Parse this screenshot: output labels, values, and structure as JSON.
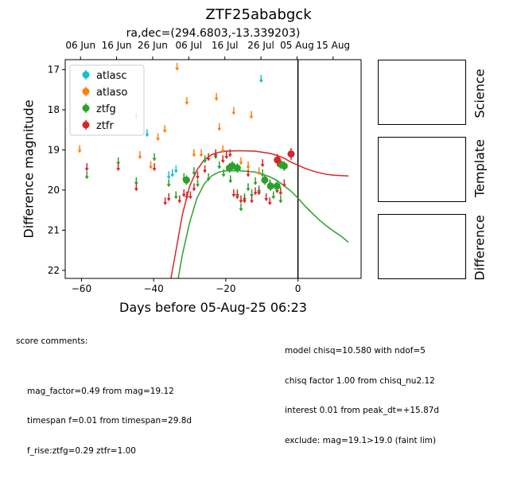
{
  "title": "ZTF25ababgck",
  "subtitle": "ra,dec=(294.6803,-13.339203)",
  "xlabel": "Days before 05-Aug-25 06:23",
  "ylabel": "Difference magnitude",
  "side_panels": [
    "Science",
    "Template",
    "Difference"
  ],
  "comments_left": {
    "header": "score comments:",
    "lines": [
      "mag_factor=0.49 from mag=19.12",
      "timespan f=0.01 from timespan=29.8d",
      "f_rise:ztfg=0.29 ztfr=1.00"
    ]
  },
  "comments_right": {
    "lines": [
      "model chisq=10.580 with ndof=5",
      "chisq factor 1.00 from chisq_nu2.12",
      "interest 0.01 from peak_dt=+15.87d",
      "exclude: mag=19.1>19.0 (faint lim)"
    ]
  },
  "chart_data": {
    "type": "scatter",
    "xlim": [
      -64.5,
      17.5
    ],
    "ylim": [
      22.2,
      16.75
    ],
    "y_inverted": true,
    "x_ticks": [
      -60,
      -40,
      -20,
      0
    ],
    "y_ticks": [
      17,
      18,
      19,
      20,
      21,
      22
    ],
    "top_axis_ticks": [
      {
        "x": -60.26,
        "label": "06 Jun"
      },
      {
        "x": -50.26,
        "label": "16 Jun"
      },
      {
        "x": -40.26,
        "label": "26 Jun"
      },
      {
        "x": -30.26,
        "label": "06 Jul"
      },
      {
        "x": -20.26,
        "label": "16 Jul"
      },
      {
        "x": -10.26,
        "label": "26 Jul"
      },
      {
        "x": -0.26,
        "label": "05 Aug"
      },
      {
        "x": 9.74,
        "label": "15 Aug"
      }
    ],
    "vline_x": 0,
    "legend": {
      "position": "top-left",
      "entries": [
        "atlasc",
        "atlaso",
        "ztfg",
        "ztfr"
      ]
    },
    "colors": {
      "atlasc": "#17becf",
      "atlaso": "#ff7f0e",
      "ztfg": "#2ca02c",
      "ztfr": "#d62728"
    },
    "series": [
      {
        "name": "atlasc",
        "kind": "upper_limit",
        "points": [
          [
            -35.8,
            19.65
          ],
          [
            -34.8,
            19.6
          ],
          [
            -33.8,
            19.5
          ],
          [
            -41.8,
            18.6
          ],
          [
            -10.2,
            17.25
          ]
        ]
      },
      {
        "name": "atlaso",
        "kind": "upper_limit",
        "points": [
          [
            -60.5,
            19.0
          ],
          [
            -44.8,
            18.15
          ],
          [
            -43.8,
            19.15
          ],
          [
            -40.8,
            19.4
          ],
          [
            -38.8,
            18.7
          ],
          [
            -36.9,
            18.5
          ],
          [
            -33.5,
            16.95
          ],
          [
            -30.8,
            17.8
          ],
          [
            -28.8,
            19.1
          ],
          [
            -26.8,
            19.1
          ],
          [
            -22.6,
            17.7
          ],
          [
            -21.8,
            18.45
          ],
          [
            -20.8,
            19.0
          ],
          [
            -17.8,
            18.05
          ],
          [
            -15.8,
            19.3
          ],
          [
            -13.8,
            19.4
          ],
          [
            -12.9,
            18.15
          ],
          [
            -10.8,
            19.55
          ],
          [
            -8.8,
            19.75
          ]
        ]
      },
      {
        "name": "ztfg",
        "kind": "upper_limit",
        "points": [
          [
            -58.5,
            19.65
          ],
          [
            -49.8,
            19.3
          ],
          [
            -44.8,
            19.8
          ],
          [
            -39.8,
            19.2
          ],
          [
            -35.8,
            19.85
          ],
          [
            -33.8,
            20.15
          ],
          [
            -31.6,
            19.7
          ],
          [
            -28.8,
            19.55
          ],
          [
            -27.8,
            19.85
          ],
          [
            -25.8,
            19.25
          ],
          [
            -24.8,
            19.7
          ],
          [
            -22.8,
            19.15
          ],
          [
            -21.8,
            19.4
          ],
          [
            -20.6,
            19.6
          ],
          [
            -18.7,
            19.75
          ],
          [
            -16.8,
            20.1
          ],
          [
            -15.8,
            20.45
          ],
          [
            -14.8,
            20.2
          ],
          [
            -13.8,
            19.95
          ],
          [
            -12.8,
            20.1
          ],
          [
            -11.8,
            19.8
          ],
          [
            -10.8,
            20.0
          ],
          [
            -9.8,
            19.6
          ],
          [
            -7.8,
            19.85
          ],
          [
            -6.8,
            20.15
          ],
          [
            -4.8,
            20.25
          ]
        ]
      },
      {
        "name": "ztfr",
        "kind": "upper_limit",
        "points": [
          [
            -58.5,
            19.45
          ],
          [
            -49.8,
            19.45
          ],
          [
            -44.8,
            19.95
          ],
          [
            -39.8,
            19.45
          ],
          [
            -36.8,
            20.3
          ],
          [
            -35.8,
            20.2
          ],
          [
            -32.8,
            20.25
          ],
          [
            -31.6,
            20.1
          ],
          [
            -30.8,
            20.15
          ],
          [
            -29.8,
            20.15
          ],
          [
            -28.8,
            19.95
          ],
          [
            -27.8,
            19.65
          ],
          [
            -25.8,
            19.5
          ],
          [
            -24.8,
            19.2
          ],
          [
            -22.8,
            19.1
          ],
          [
            -20.8,
            19.25
          ],
          [
            -19.8,
            19.15
          ],
          [
            -18.8,
            19.1
          ],
          [
            -17.8,
            20.1
          ],
          [
            -16.8,
            20.15
          ],
          [
            -15.8,
            20.25
          ],
          [
            -14.8,
            20.25
          ],
          [
            -13.8,
            19.6
          ],
          [
            -12.8,
            20.25
          ],
          [
            -11.8,
            20.05
          ],
          [
            -10.8,
            20.05
          ],
          [
            -9.8,
            19.35
          ],
          [
            -8.8,
            20.2
          ],
          [
            -7.8,
            20.3
          ],
          [
            -5.8,
            20.0
          ],
          [
            -4.8,
            20.05
          ],
          [
            -3.8,
            19.85
          ]
        ]
      },
      {
        "name": "ztfg",
        "kind": "detection",
        "points": [
          [
            -30.9,
            19.75,
            0.12
          ],
          [
            -19.0,
            19.45,
            0.12
          ],
          [
            -18.2,
            19.4,
            0.12
          ],
          [
            -16.8,
            19.45,
            0.12
          ],
          [
            -9.2,
            19.75,
            0.12
          ],
          [
            -7.6,
            19.9,
            0.12
          ],
          [
            -5.8,
            19.9,
            0.12
          ],
          [
            -4.9,
            19.35,
            0.12
          ],
          [
            -3.8,
            19.4,
            0.12
          ]
        ]
      },
      {
        "name": "ztfr",
        "kind": "detection",
        "points": [
          [
            -5.7,
            19.25,
            0.15
          ],
          [
            -1.9,
            19.1,
            0.15
          ]
        ]
      }
    ],
    "model_curves": [
      {
        "name": "ztfr",
        "points": [
          [
            -35.2,
            22.2
          ],
          [
            -34,
            21.6
          ],
          [
            -32,
            20.6
          ],
          [
            -30,
            19.9
          ],
          [
            -28,
            19.5
          ],
          [
            -26,
            19.25
          ],
          [
            -24,
            19.12
          ],
          [
            -22,
            19.06
          ],
          [
            -20,
            19.03
          ],
          [
            -16,
            19.02
          ],
          [
            -12,
            19.03
          ],
          [
            -8,
            19.08
          ],
          [
            -6,
            19.13
          ],
          [
            -4,
            19.2
          ],
          [
            -2,
            19.3
          ],
          [
            0,
            19.38
          ],
          [
            2,
            19.46
          ],
          [
            4,
            19.52
          ],
          [
            6,
            19.57
          ],
          [
            8,
            19.61
          ],
          [
            10,
            19.63
          ],
          [
            12,
            19.64
          ],
          [
            14,
            19.65
          ]
        ]
      },
      {
        "name": "ztfg",
        "points": [
          [
            -33.2,
            22.2
          ],
          [
            -32,
            21.6
          ],
          [
            -30,
            20.8
          ],
          [
            -28,
            20.2
          ],
          [
            -26,
            19.85
          ],
          [
            -24,
            19.65
          ],
          [
            -22,
            19.55
          ],
          [
            -20,
            19.52
          ],
          [
            -16,
            19.52
          ],
          [
            -12,
            19.55
          ],
          [
            -10,
            19.6
          ],
          [
            -8,
            19.66
          ],
          [
            -6,
            19.75
          ],
          [
            -4,
            19.88
          ],
          [
            -2,
            20.02
          ],
          [
            0,
            20.2
          ],
          [
            2,
            20.4
          ],
          [
            4,
            20.58
          ],
          [
            6,
            20.75
          ],
          [
            8,
            20.9
          ],
          [
            10,
            21.03
          ],
          [
            12,
            21.15
          ],
          [
            14,
            21.3
          ]
        ]
      }
    ]
  }
}
